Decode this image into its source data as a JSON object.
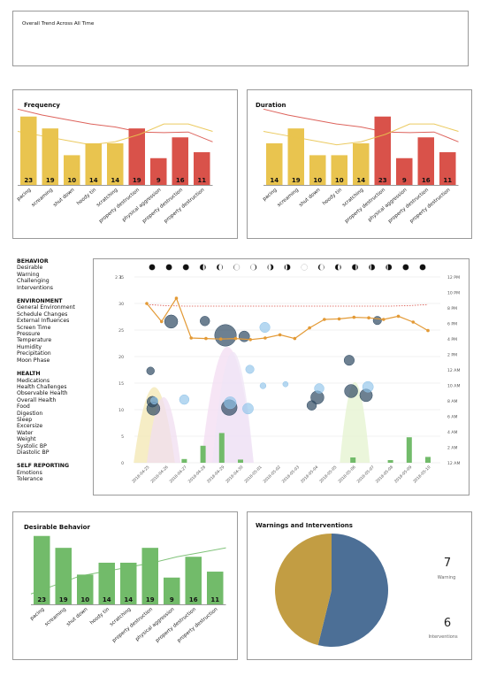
{
  "overall": {
    "title": "Overall Trend Across All Time"
  },
  "bar_categories": [
    "pacing",
    "screaming",
    "shut down",
    "hoody tin",
    "scratching",
    "property destruction",
    "physical aggression",
    "property destruction",
    "property destruction"
  ],
  "colors": {
    "yellow": "#e9c44f",
    "red": "#d9524a",
    "green": "#72bb6a",
    "gold": "#c29d43",
    "blue": "#4c6f96",
    "orange": "#e39a36",
    "navy": "#2f4a63",
    "lightblue": "#8fc3e9"
  },
  "frequency": {
    "title": "Frequency"
  },
  "duration": {
    "title": "Duration"
  },
  "desirable": {
    "title": "Desirable Behavior"
  },
  "warnings": {
    "title": "Warnings and Interventions",
    "warning_count": "7",
    "warning_label": "Warning",
    "intervention_count": "6",
    "intervention_label": "Interventions"
  },
  "sidebar": [
    {
      "heading": "BEHAVIOR",
      "items": [
        "Desirable",
        "Warning",
        "Challenging",
        "Interventions"
      ]
    },
    {
      "heading": "ENVIRONMENT",
      "items": [
        "General Environment",
        "Schedule Changes",
        "External Influences",
        "Screen Time",
        "Pressure",
        "Temperature",
        "Humidity",
        "Precipitation",
        "Moon Phase"
      ]
    },
    {
      "heading": "HEALTH",
      "items": [
        "Medications",
        "Health Challenges",
        "Observable Health",
        "Overall Health",
        "Food",
        "Digestion",
        "Sleep",
        "Excersize",
        "Water",
        "Weight",
        "Systolic BP",
        "Diastolic BP"
      ]
    },
    {
      "heading": "SELF REPORTING",
      "items": [
        "Emotions",
        "Tolerance"
      ]
    }
  ],
  "chart_data": [
    {
      "type": "bar",
      "title": "Frequency",
      "categories": [
        "pacing",
        "screaming",
        "shut down",
        "hoody tin",
        "scratching",
        "property destruction",
        "physical aggression",
        "property destruction",
        "property destruction"
      ],
      "values": [
        23,
        19,
        10,
        14,
        14,
        19,
        9,
        16,
        11
      ],
      "bar_colors": [
        "yellow",
        "yellow",
        "yellow",
        "yellow",
        "yellow",
        "red",
        "red",
        "red",
        "red"
      ],
      "ylim": [
        0,
        25
      ],
      "overlay_lines": [
        {
          "color": "red",
          "values": [
            25.5,
            23.5,
            22,
            20.5,
            19.5,
            17.8,
            17.6,
            17.8,
            14.5
          ]
        },
        {
          "color": "yellow",
          "values": [
            18,
            16.5,
            15,
            13.5,
            14.5,
            17,
            20.5,
            20.5,
            18
          ]
        }
      ]
    },
    {
      "type": "bar",
      "title": "Duration",
      "categories": [
        "pacing",
        "screaming",
        "shut down",
        "hoody tin",
        "scratching",
        "property destruction",
        "physical aggression",
        "property destruction",
        "property destruction"
      ],
      "values": [
        14,
        19,
        10,
        10,
        14,
        23,
        9,
        16,
        11
      ],
      "bar_colors": [
        "yellow",
        "yellow",
        "yellow",
        "yellow",
        "yellow",
        "red",
        "red",
        "red",
        "red"
      ],
      "ylim": [
        0,
        25
      ],
      "overlay_lines": [
        {
          "color": "red",
          "values": [
            25.5,
            23.5,
            22,
            20.5,
            19.5,
            17.8,
            17.6,
            17.8,
            14.5
          ]
        },
        {
          "color": "yellow",
          "values": [
            18,
            16.5,
            15,
            13.5,
            14.5,
            17,
            20.5,
            20.5,
            18
          ]
        }
      ]
    },
    {
      "type": "timeline",
      "x": [
        "2018-04-25",
        "2018-04-26",
        "2018-04-27",
        "2018-04-28",
        "2018-04-29",
        "2018-04-30",
        "2018-05-01",
        "2018-05-02",
        "2018-05-03",
        "2018-05-04",
        "2018-05-05",
        "2018-05-06",
        "2018-05-07",
        "2018-05-08",
        "2018-05-09",
        "2018-05-10"
      ],
      "left_ticks": [
        "0",
        "5",
        "10",
        "15",
        "20",
        "25",
        "30",
        "35"
      ],
      "left_top_ticks": [
        "2",
        "1"
      ],
      "right_ticks": [
        "12 AM",
        "2 AM",
        "4 AM",
        "6 AM",
        "8 AM",
        "10 AM",
        "12 AM",
        "2 PM",
        "4 PM",
        "6 PM",
        "8 PM",
        "10 PM",
        "12 PM"
      ],
      "left_ylim": [
        0,
        35
      ],
      "moon_phases": [
        0,
        0,
        0,
        0.15,
        0.3,
        0.45,
        0.6,
        0.75,
        0.85,
        0.5,
        0.35,
        0.2,
        0.1,
        0.9,
        0.95,
        1.0,
        1.0
      ],
      "orange_line": [
        30,
        26.6,
        31,
        23.5,
        23.4,
        23.3,
        23.4,
        23.2,
        23.5,
        24.1,
        23.4,
        25.4,
        27,
        27.1,
        27.4,
        27.3,
        27,
        27.6,
        26.5,
        24.9
      ],
      "dashed_line": [
        29.8,
        29.6,
        29.5,
        29.5,
        29.5,
        29.5,
        29.5,
        29.5,
        29.5,
        29.5,
        29.5,
        29.5,
        29.5,
        29.5,
        29.6,
        29.8
      ],
      "green_bars": [
        0,
        0,
        0.7,
        3.2,
        5.6,
        0.6,
        0,
        0,
        0,
        0,
        0,
        1,
        0,
        0.5,
        4.8,
        1.1
      ],
      "bubbles": [
        {
          "x": 0.2,
          "y": 17.3,
          "r": 1.3,
          "color": "navy"
        },
        {
          "x": 0.3,
          "y": 11.5,
          "r": 1.8,
          "color": "navy"
        },
        {
          "x": 0.35,
          "y": 10.2,
          "r": 2.2,
          "color": "navy"
        },
        {
          "x": 0.4,
          "y": 11.7,
          "r": 1.2,
          "color": "lightblue"
        },
        {
          "x": 1.3,
          "y": 26.6,
          "r": 2.2,
          "color": "navy"
        },
        {
          "x": 2.0,
          "y": 11.9,
          "r": 1.6,
          "color": "lightblue"
        },
        {
          "x": 3.1,
          "y": 26.7,
          "r": 1.6,
          "color": "navy"
        },
        {
          "x": 4.2,
          "y": 24.0,
          "r": 3.6,
          "color": "navy"
        },
        {
          "x": 4.4,
          "y": 10.4,
          "r": 2.6,
          "color": "navy"
        },
        {
          "x": 4.45,
          "y": 11.3,
          "r": 2.0,
          "color": "lightblue"
        },
        {
          "x": 5.2,
          "y": 23.8,
          "r": 1.8,
          "color": "navy"
        },
        {
          "x": 5.4,
          "y": 10.2,
          "r": 1.8,
          "color": "lightblue"
        },
        {
          "x": 5.5,
          "y": 17.6,
          "r": 1.4,
          "color": "lightblue"
        },
        {
          "x": 6.3,
          "y": 25.5,
          "r": 1.7,
          "color": "lightblue"
        },
        {
          "x": 6.2,
          "y": 14.5,
          "r": 1.0,
          "color": "lightblue"
        },
        {
          "x": 7.4,
          "y": 14.8,
          "r": 0.9,
          "color": "lightblue"
        },
        {
          "x": 8.8,
          "y": 10.8,
          "r": 1.6,
          "color": "navy"
        },
        {
          "x": 9.1,
          "y": 12.3,
          "r": 2.2,
          "color": "navy"
        },
        {
          "x": 9.2,
          "y": 14.0,
          "r": 1.6,
          "color": "lightblue"
        },
        {
          "x": 10.8,
          "y": 19.3,
          "r": 1.7,
          "color": "navy"
        },
        {
          "x": 10.9,
          "y": 13.5,
          "r": 2.2,
          "color": "navy"
        },
        {
          "x": 11.7,
          "y": 12.7,
          "r": 2.1,
          "color": "navy"
        },
        {
          "x": 11.8,
          "y": 14.3,
          "r": 1.8,
          "color": "lightblue"
        },
        {
          "x": 12.3,
          "y": 26.8,
          "r": 1.4,
          "color": "navy"
        }
      ]
    },
    {
      "type": "bar",
      "title": "Desirable Behavior",
      "categories": [
        "pacing",
        "screaming",
        "shut down",
        "hoody tin",
        "scratching",
        "property destruction",
        "physical aggression",
        "property destruction",
        "property destruction"
      ],
      "values": [
        23,
        19,
        10,
        14,
        14,
        19,
        9,
        16,
        11
      ],
      "bar_colors": [
        "green",
        "green",
        "green",
        "green",
        "green",
        "green",
        "green",
        "green",
        "green"
      ],
      "ylim": [
        0,
        25
      ],
      "overlay_lines": [
        {
          "color": "green",
          "values": [
            3.5,
            6.5,
            9.5,
            11,
            12.5,
            14,
            16,
            17.5,
            19
          ]
        }
      ]
    },
    {
      "type": "pie",
      "title": "Warnings and Interventions",
      "slices": [
        {
          "label": "Warning",
          "value": 7,
          "color": "blue"
        },
        {
          "label": "Interventions",
          "value": 6,
          "color": "gold"
        }
      ]
    }
  ]
}
